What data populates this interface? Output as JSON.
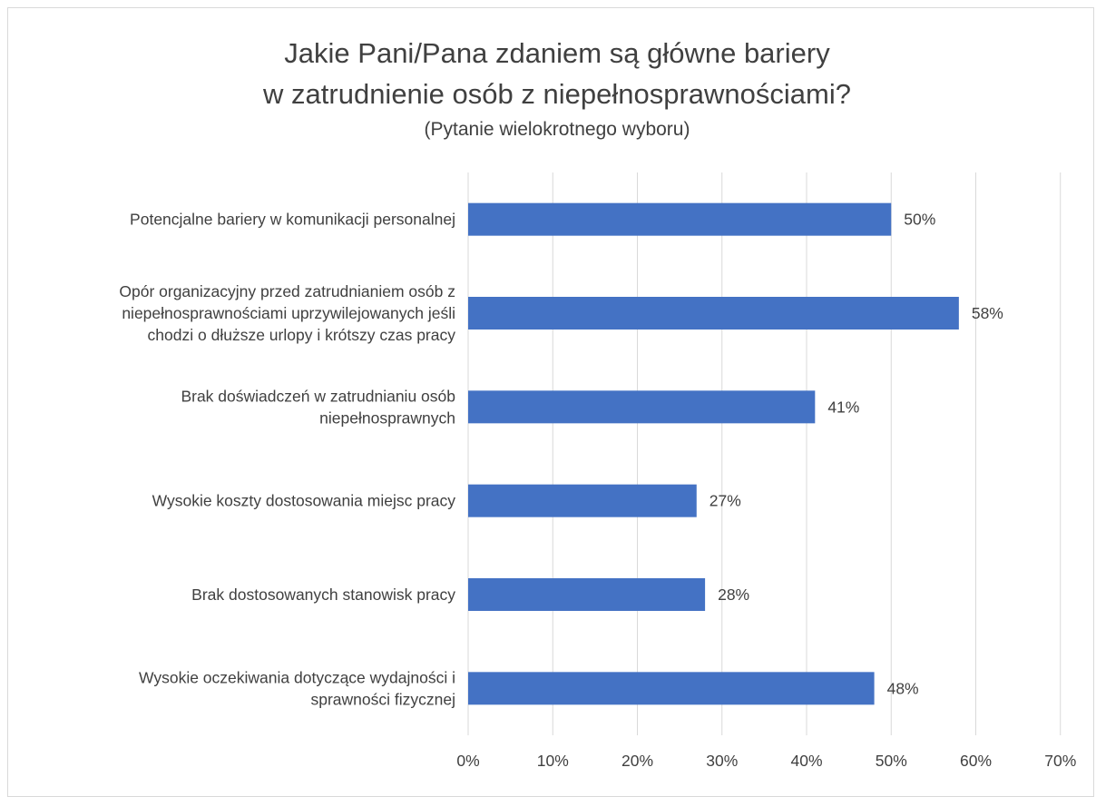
{
  "chart_data": {
    "type": "bar",
    "orientation": "horizontal",
    "title_line1": "Jakie Pani/Pana zdaniem są główne bariery",
    "title_line2": "w zatrudnienie osób z niepełnosprawnościami?",
    "subtitle": "(Pytanie wielokrotnego wyboru)",
    "categories": [
      [
        "Potencjalne bariery w komunikacji personalnej"
      ],
      [
        "Opór organizacyjny przed zatrudnianiem osób z",
        "niepełnosprawnościami uprzywilejowanych jeśli",
        "chodzi o dłuższe urlopy i krótszy czas pracy"
      ],
      [
        "Brak doświadczeń w zatrudnianiu osób",
        "niepełnosprawnych"
      ],
      [
        "Wysokie koszty dostosowania miejsc pracy"
      ],
      [
        "Brak dostosowanych stanowisk pracy"
      ],
      [
        "Wysokie oczekiwania dotyczące wydajności i",
        "sprawności fizycznej"
      ]
    ],
    "values": [
      50,
      58,
      41,
      27,
      28,
      48
    ],
    "data_labels": [
      "50%",
      "58%",
      "41%",
      "27%",
      "28%",
      "48%"
    ],
    "xlim": [
      0,
      70
    ],
    "xticks": [
      0,
      10,
      20,
      30,
      40,
      50,
      60,
      70
    ],
    "xtick_labels": [
      "0%",
      "10%",
      "20%",
      "30%",
      "40%",
      "50%",
      "60%",
      "70%"
    ],
    "grid": true,
    "legend": "none",
    "bar_color": "#4472c4",
    "grid_color": "#d9d9d9"
  }
}
